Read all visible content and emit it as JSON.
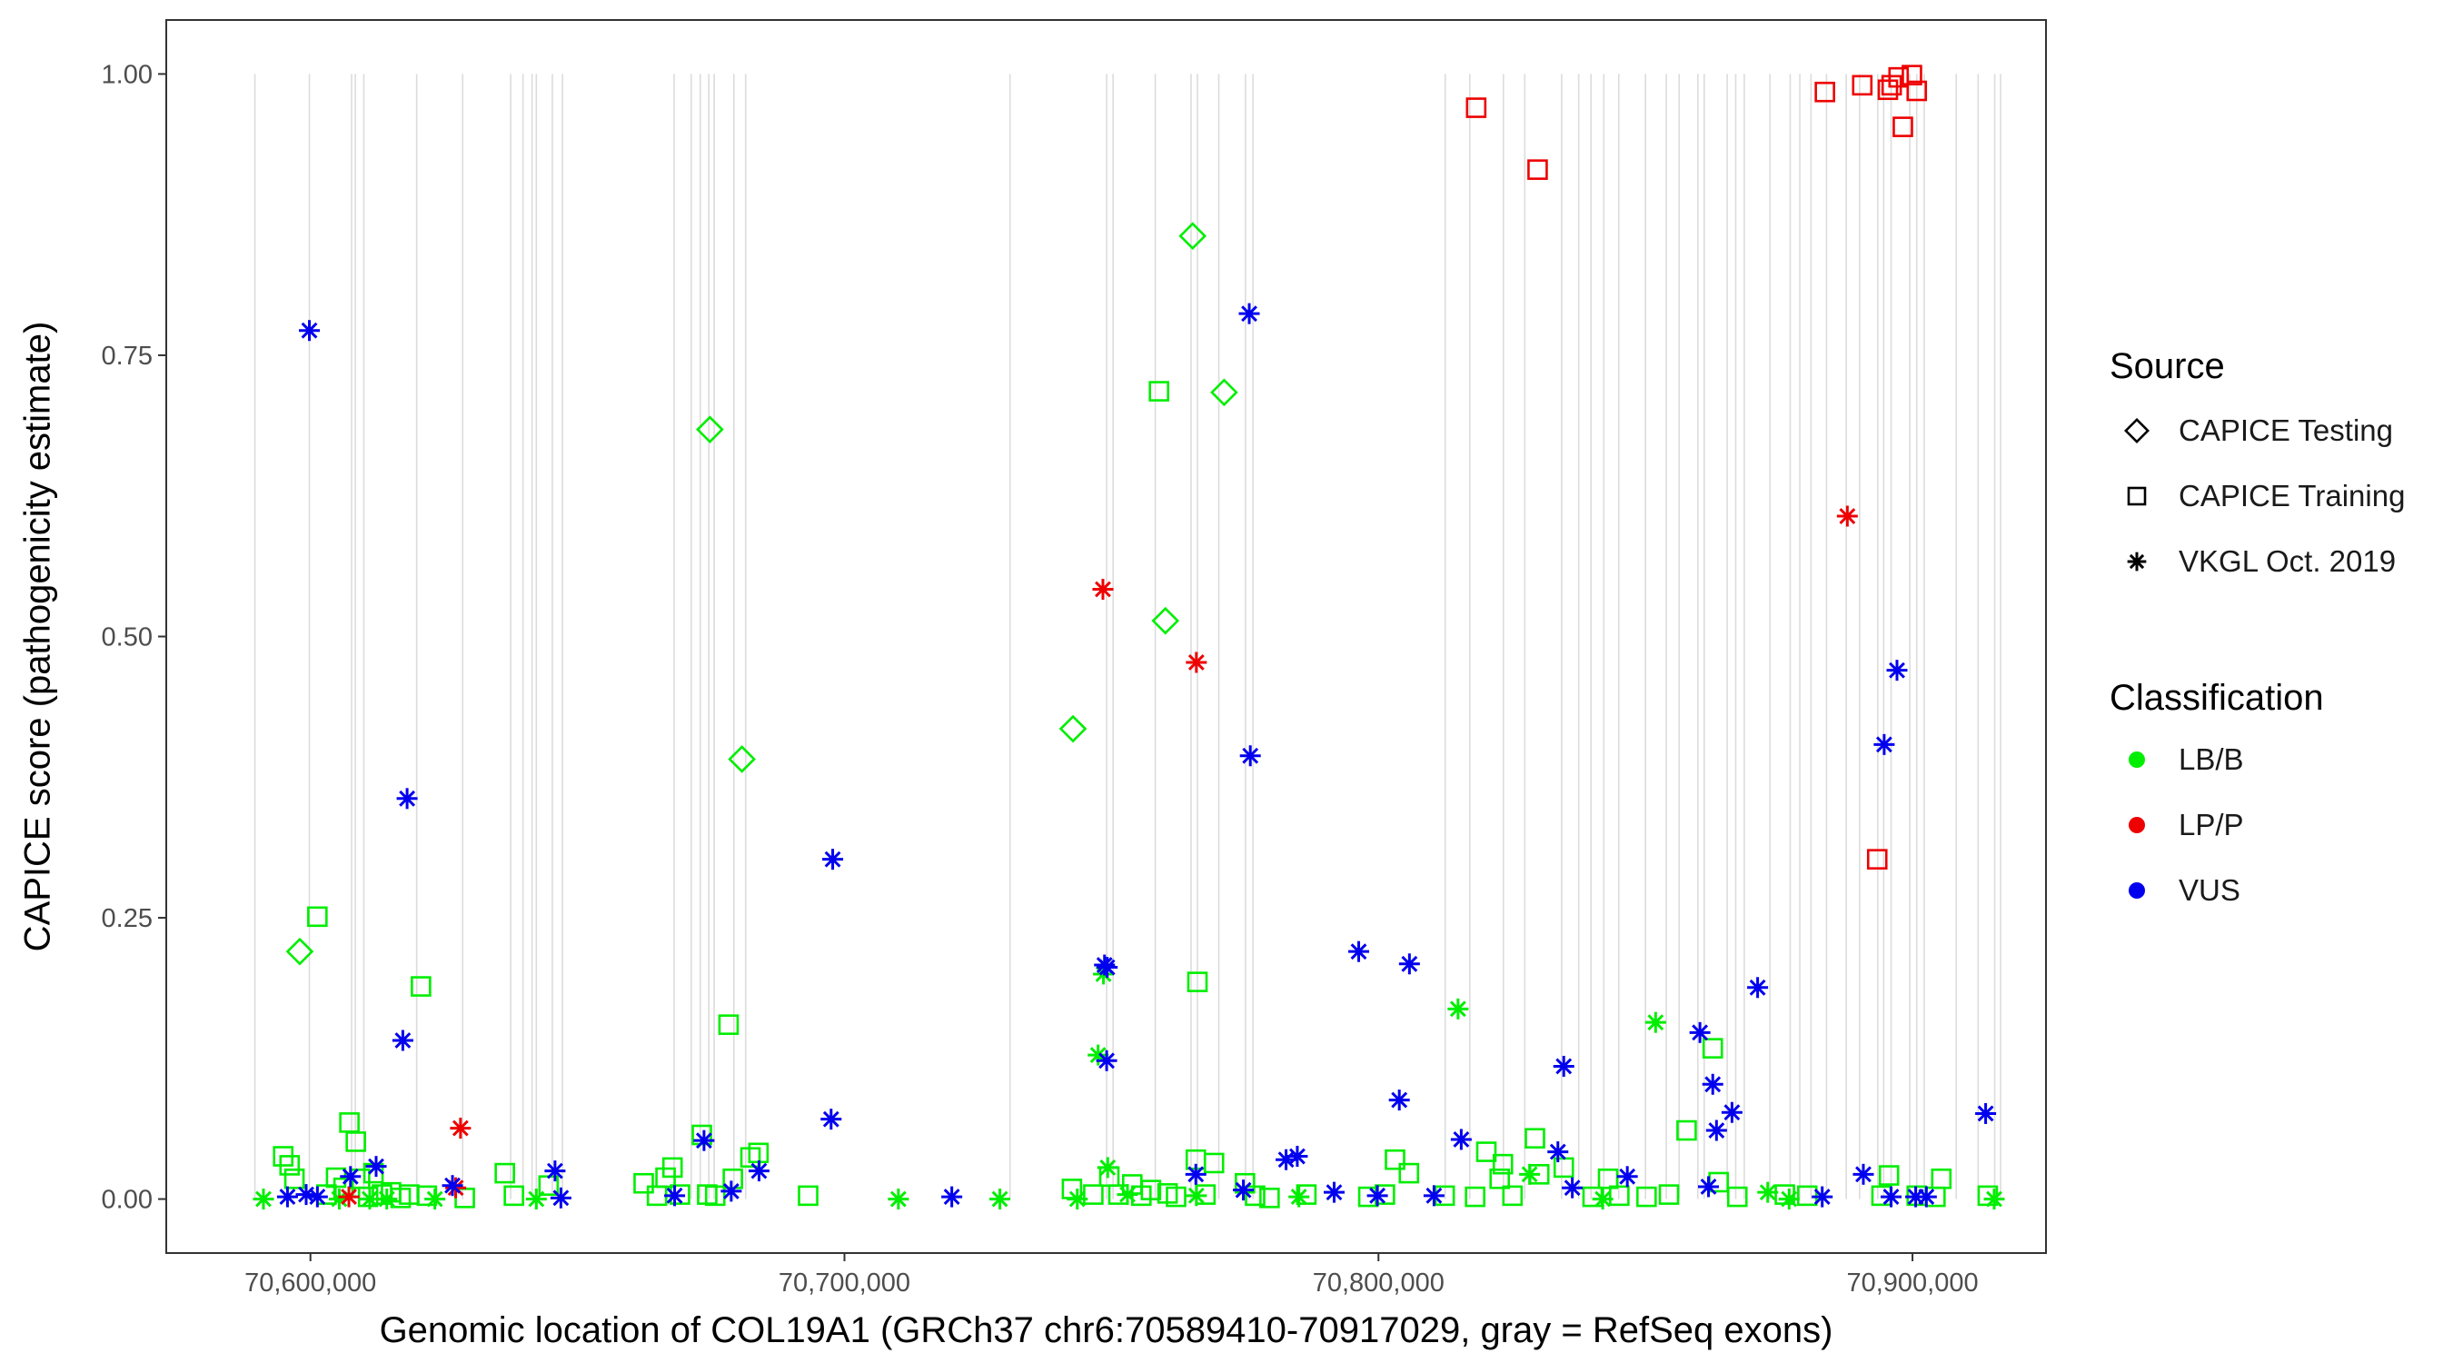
{
  "chart_data": {
    "type": "scatter",
    "title": "",
    "xlabel": "Genomic location of COL19A1 (GRCh37 chr6:70589410-70917029, gray = RefSeq exons)",
    "ylabel": "CAPICE score (pathogenicity estimate)",
    "xlim": [
      70573000,
      70925000
    ],
    "ylim": [
      -0.048,
      1.048
    ],
    "x_ticks": [
      70600000,
      70700000,
      70800000,
      70900000
    ],
    "x_tick_labels": [
      "70,600,000",
      "70,700,000",
      "70,800,000",
      "70,900,000"
    ],
    "y_ticks": [
      0,
      0.25,
      0.5,
      0.75,
      1.0
    ],
    "y_tick_labels": [
      "0.00",
      "0.25",
      "0.50",
      "0.75",
      "1.00"
    ],
    "grid": false,
    "exon_lines": [
      70589600,
      70599800,
      70607700,
      70608400,
      70610000,
      70619900,
      70628500,
      70637500,
      70639800,
      70641500,
      70642300,
      70645300,
      70647200,
      70668100,
      70671300,
      70673000,
      70674600,
      70675600,
      70679300,
      70681500,
      70731000,
      70749100,
      70750300,
      70758200,
      70764900,
      70766100,
      70770100,
      70775100,
      70776500,
      70812500,
      70817100,
      70823400,
      70827400,
      70834300,
      70837500,
      70839800,
      70842200,
      70845000,
      70850000,
      70853900,
      70856300,
      70859800,
      70861000,
      70865300,
      70866900,
      70868500,
      70873300,
      70877100,
      70878900,
      70881000,
      70883900,
      70887600,
      70890100,
      70893500,
      70894600,
      70896000,
      70899500,
      70900800,
      70902200,
      70908200,
      70912300,
      70915400,
      70916500
    ],
    "legend": {
      "position": "right",
      "source_title": "Source",
      "source_items": [
        {
          "label": "CAPICE Testing",
          "shape": "diamond"
        },
        {
          "label": "CAPICE Training",
          "shape": "square"
        },
        {
          "label": "VKGL Oct. 2019",
          "shape": "asterisk"
        }
      ],
      "classification_title": "Classification",
      "classification_items": [
        {
          "label": "LB/B",
          "color": "#00ee00"
        },
        {
          "label": "LP/P",
          "color": "#ee0000"
        },
        {
          "label": "VUS",
          "color": "#0000ee"
        }
      ]
    },
    "series": [
      {
        "source": "CAPICE Testing",
        "classification": "LB/B",
        "x": [
          70598000,
          70674800,
          70680800,
          70742800,
          70760100,
          70765200,
          70771100
        ],
        "y": [
          0.22,
          0.684,
          0.391,
          0.418,
          0.514,
          0.856,
          0.717
        ]
      },
      {
        "source": "CAPICE Training",
        "classification": "LB/B",
        "x": [
          70594900,
          70596100,
          70597000,
          70601300,
          70603000,
          70604800,
          70606200,
          70607300,
          70608500,
          70609300,
          70610800,
          70611800,
          70613400,
          70615100,
          70616900,
          70618500,
          70620700,
          70621800,
          70628900,
          70636400,
          70638100,
          70644600,
          70662400,
          70664900,
          70666500,
          70667800,
          70669200,
          70673300,
          70674300,
          70675800,
          70678300,
          70679100,
          70682400,
          70683900,
          70693200,
          70742600,
          70746600,
          70749600,
          70751300,
          70753900,
          70755600,
          70757400,
          70758900,
          70760500,
          70762100,
          70765800,
          70766100,
          70767600,
          70769200,
          70775000,
          70776900,
          70779600,
          70786500,
          70798100,
          70801200,
          70803100,
          70805700,
          70812400,
          70818100,
          70820200,
          70822700,
          70823300,
          70825100,
          70829300,
          70830100,
          70834700,
          70840100,
          70843000,
          70845100,
          70850200,
          70854400,
          70857700,
          70862600,
          70863700,
          70867200,
          70876100,
          70880300,
          70894200,
          70895600,
          70900800,
          70904300,
          70905400,
          70914100
        ],
        "y": [
          0.038,
          0.03,
          0.018,
          0.251,
          0.004,
          0.019,
          0.01,
          0.068,
          0.051,
          0.018,
          0.002,
          0.023,
          0.004,
          0.006,
          0.001,
          0.004,
          0.189,
          0.003,
          0.001,
          0.023,
          0.003,
          0.012,
          0.014,
          0.003,
          0.019,
          0.028,
          0.004,
          0.057,
          0.004,
          0.003,
          0.155,
          0.018,
          0.037,
          0.041,
          0.003,
          0.009,
          0.004,
          0.02,
          0.004,
          0.013,
          0.003,
          0.008,
          0.718,
          0.005,
          0.002,
          0.035,
          0.193,
          0.004,
          0.032,
          0.014,
          0.003,
          0.001,
          0.004,
          0.002,
          0.004,
          0.035,
          0.023,
          0.003,
          0.002,
          0.042,
          0.018,
          0.031,
          0.003,
          0.054,
          0.022,
          0.028,
          0.002,
          0.018,
          0.003,
          0.002,
          0.004,
          0.061,
          0.134,
          0.015,
          0.002,
          0.004,
          0.003,
          0.003,
          0.021,
          0.003,
          0.002,
          0.018,
          0.003
        ]
      },
      {
        "source": "CAPICE Training",
        "classification": "LP/P",
        "x": [
          70818300,
          70829800,
          70883600,
          70890600,
          70893400,
          70895400,
          70896100,
          70897400,
          70898200,
          70899900,
          70900800
        ],
        "y": [
          0.97,
          0.915,
          0.984,
          0.99,
          0.302,
          0.986,
          0.99,
          0.997,
          0.953,
          0.999,
          0.985
        ]
      },
      {
        "source": "VKGL Oct. 2019",
        "classification": "LB/B",
        "x": [
          70591200,
          70605400,
          70611100,
          70614300,
          70623300,
          70642300,
          70710100,
          70729100,
          70743600,
          70747500,
          70748500,
          70749300,
          70753000,
          70765900,
          70785100,
          70814900,
          70828300,
          70842000,
          70851900,
          70872900,
          70876900,
          70915300
        ],
        "y": [
          0.0,
          0.0,
          0.0,
          0.0,
          0.0,
          0.0,
          0.0,
          0.0,
          0.0,
          0.128,
          0.2,
          0.028,
          0.004,
          0.003,
          0.002,
          0.169,
          0.022,
          0.0,
          0.157,
          0.006,
          0.0,
          0.0
        ]
      },
      {
        "source": "VKGL Oct. 2019",
        "classification": "LP/P",
        "x": [
          70607200,
          70627200,
          70628100,
          70748400,
          70765900,
          70887800
        ],
        "y": [
          0.002,
          0.01,
          0.063,
          0.542,
          0.477,
          0.607
        ]
      },
      {
        "source": "VKGL Oct. 2019",
        "classification": "VUS",
        "x": [
          70595700,
          70599200,
          70599800,
          70601300,
          70607500,
          70612300,
          70617300,
          70618100,
          70626600,
          70645800,
          70646900,
          70668200,
          70673700,
          70678800,
          70684000,
          70697500,
          70697800,
          70720100,
          70748700,
          70749100,
          70749200,
          70765800,
          70775800,
          70776000,
          70774700,
          70782700,
          70784800,
          70791700,
          70796300,
          70799800,
          70803900,
          70805800,
          70810400,
          70815500,
          70833600,
          70834700,
          70836300,
          70846600,
          70860200,
          70861800,
          70862600,
          70863300,
          70866200,
          70871000,
          70883100,
          70890800,
          70894700,
          70896000,
          70897100,
          70900600,
          70902600,
          70913700
        ],
        "y": [
          0.002,
          0.004,
          0.772,
          0.002,
          0.02,
          0.029,
          0.141,
          0.356,
          0.012,
          0.025,
          0.001,
          0.003,
          0.052,
          0.007,
          0.025,
          0.071,
          0.302,
          0.002,
          0.208,
          0.123,
          0.206,
          0.022,
          0.787,
          0.394,
          0.008,
          0.035,
          0.038,
          0.006,
          0.22,
          0.003,
          0.088,
          0.209,
          0.003,
          0.053,
          0.042,
          0.118,
          0.01,
          0.02,
          0.148,
          0.011,
          0.102,
          0.061,
          0.077,
          0.188,
          0.002,
          0.022,
          0.404,
          0.002,
          0.47,
          0.002,
          0.002,
          0.076
        ]
      }
    ]
  }
}
